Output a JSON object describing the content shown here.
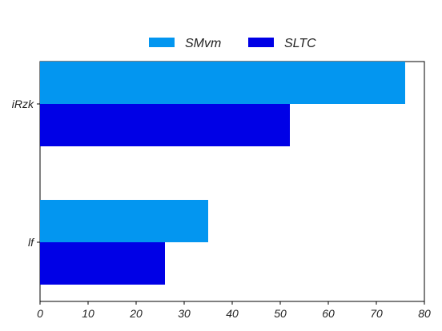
{
  "chart_data": {
    "type": "bar",
    "orientation": "horizontal",
    "categories": [
      "iRzk",
      "lf"
    ],
    "series": [
      {
        "name": "SMvm",
        "values": [
          76,
          35
        ],
        "color": "#0396f0"
      },
      {
        "name": "SLTC",
        "values": [
          52,
          26
        ],
        "color": "#0000e6"
      }
    ],
    "title": "",
    "xlabel": "",
    "ylabel": "",
    "xlim": [
      0,
      80
    ],
    "xticks": [
      "0",
      "10",
      "20",
      "30",
      "40",
      "50",
      "60",
      "70",
      "80"
    ],
    "grid": false,
    "legend_position": "top-center"
  }
}
